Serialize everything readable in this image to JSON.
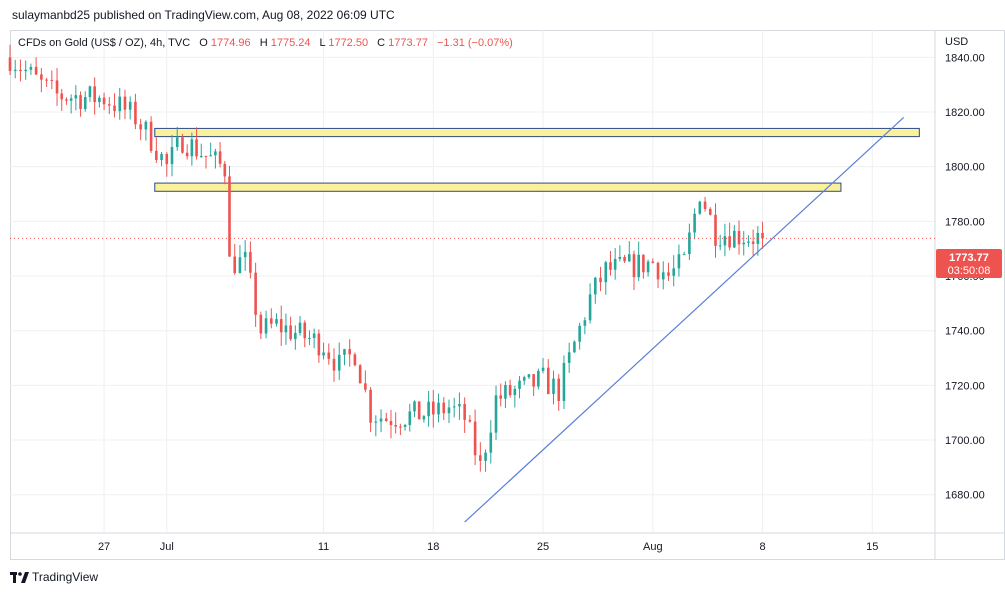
{
  "header": {
    "published_line": "sulaymanbd25 published on TradingView.com, Aug 08, 2022 06:09 UTC"
  },
  "footer": {
    "brand": "TradingView",
    "logo_icon": "tradingview-logo-icon"
  },
  "legend": {
    "symbol": "CFDs on Gold (US$ / OZ), 4h, TVC",
    "o_label": "O",
    "o_value": "1774.96",
    "h_label": "H",
    "h_value": "1775.24",
    "l_label": "L",
    "l_value": "1772.50",
    "c_label": "C",
    "c_value": "1773.77",
    "change": "−1.31 (−0.07%)"
  },
  "price_scale": {
    "currency": "USD",
    "last_price": "1773.77",
    "countdown": "03:50:08"
  },
  "colors": {
    "up": "#26a69a",
    "down": "#ef5350",
    "zone_fill": "#fbf19a",
    "zone_border": "#2a4a8a",
    "trendline": "#5b7fd6",
    "last_price_line": "#ef5350",
    "grid": "#eef0f3"
  },
  "chart_data": {
    "type": "candlestick",
    "title": "CFDs on Gold (US$ / OZ), 4h, TVC",
    "ylim": [
      1666,
      1850
    ],
    "y_ticks": [
      1680,
      1700,
      1720,
      1740,
      1760,
      1780,
      1800,
      1820,
      1840
    ],
    "y_tick_labels": [
      "1680.00",
      "1700.00",
      "1720.00",
      "1740.00",
      "1760.00",
      "1780.00",
      "1800.00",
      "1820.00",
      "1840.00"
    ],
    "xlim": [
      "2022-06-21",
      "2022-08-19"
    ],
    "x_ticks": [
      "2022-06-27",
      "2022-07-01",
      "2022-07-11",
      "2022-07-18",
      "2022-07-25",
      "2022-08-01",
      "2022-08-08",
      "2022-08-15"
    ],
    "x_tick_labels": [
      "27",
      "Jul",
      "11",
      "18",
      "25",
      "Aug",
      "8",
      "15"
    ],
    "grid": true,
    "last_price": 1773.77,
    "candles_4h_close": [
      [
        "2022-06-21",
        1840
      ],
      [
        "2022-06-23",
        1830
      ],
      [
        "2022-06-24",
        1826
      ],
      [
        "2022-06-27",
        1825
      ],
      [
        "2022-06-28",
        1822
      ],
      [
        "2022-06-29",
        1818
      ],
      [
        "2022-06-30",
        1810
      ],
      [
        "2022-07-01",
        1800
      ],
      [
        "2022-07-02",
        1810
      ],
      [
        "2022-07-05",
        1798
      ],
      [
        "2022-07-05",
        1765
      ],
      [
        "2022-07-06",
        1765
      ],
      [
        "2022-07-07",
        1740
      ],
      [
        "2022-07-08",
        1742
      ],
      [
        "2022-07-11",
        1735
      ],
      [
        "2022-07-12",
        1727
      ],
      [
        "2022-07-13",
        1732
      ],
      [
        "2022-07-14",
        1710
      ],
      [
        "2022-07-15",
        1708
      ],
      [
        "2022-07-18",
        1710
      ],
      [
        "2022-07-19",
        1712
      ],
      [
        "2022-07-20",
        1708
      ],
      [
        "2022-07-21",
        1690
      ],
      [
        "2022-07-22",
        1715
      ],
      [
        "2022-07-25",
        1722
      ],
      [
        "2022-07-26",
        1718
      ],
      [
        "2022-07-27",
        1735
      ],
      [
        "2022-07-28",
        1752
      ],
      [
        "2022-07-29",
        1762
      ],
      [
        "2022-08-01",
        1765
      ],
      [
        "2022-08-02",
        1760
      ],
      [
        "2022-08-03",
        1765
      ],
      [
        "2022-08-04",
        1791
      ],
      [
        "2022-08-05",
        1776
      ],
      [
        "2022-08-08",
        1773.77
      ]
    ],
    "zones": [
      {
        "from": "2022-07-01",
        "to": "2022-08-18",
        "low": 1811,
        "high": 1814
      },
      {
        "from": "2022-07-01",
        "to": "2022-08-13",
        "low": 1791,
        "high": 1794
      }
    ],
    "trendline": {
      "start": [
        "2022-07-20",
        1670
      ],
      "end": [
        "2022-08-17",
        1818
      ]
    }
  }
}
